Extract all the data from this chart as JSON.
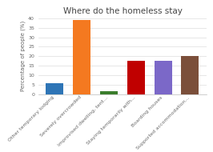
{
  "title": "Where do the homeless stay",
  "ylabel": "Percentage of people (%)",
  "categories": [
    "Other temporary lodging",
    "Severely overcrowded",
    "Improvised dwelling, tent...",
    "Staying temporarily with...",
    "Boarding houses",
    "Supported accommodation..."
  ],
  "values": [
    6,
    39,
    1.5,
    17.5,
    17.5,
    20
  ],
  "bar_colors": [
    "#2e75b6",
    "#f47920",
    "#3a7d2c",
    "#c00000",
    "#7b68c8",
    "#7b4f3a"
  ],
  "ylim": [
    0,
    40
  ],
  "yticks": [
    0,
    5,
    10,
    15,
    20,
    25,
    30,
    35,
    40
  ],
  "title_fontsize": 7.5,
  "ylabel_fontsize": 5,
  "tick_fontsize": 4.5,
  "background_color": "#ffffff"
}
